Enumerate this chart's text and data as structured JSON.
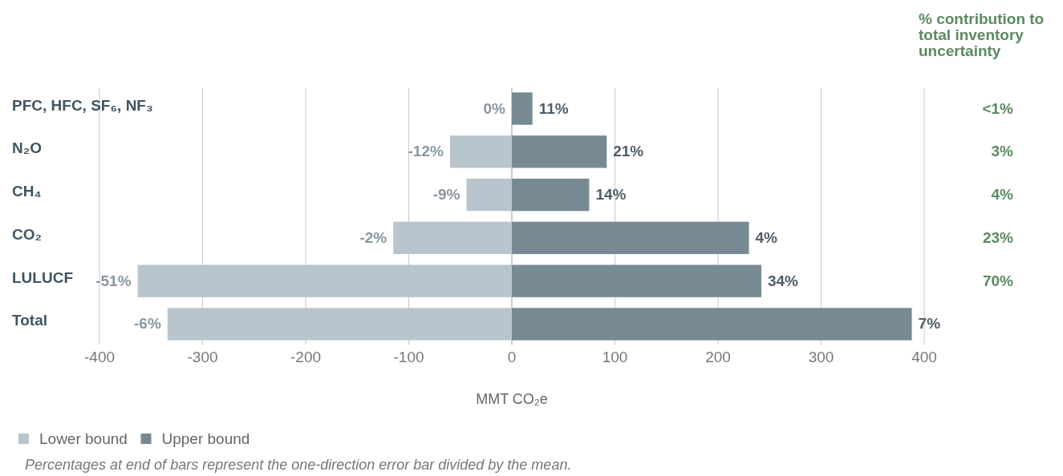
{
  "chart_data": {
    "type": "bar",
    "orientation": "horizontal",
    "stacked": true,
    "categories": [
      "PFC, HFC, SF₆, NF₃",
      "N₂O",
      "CH₄",
      "CO₂",
      "LULUCF",
      "Total"
    ],
    "series": [
      {
        "name": "Lower bound",
        "color": "#b8c5cc",
        "values": [
          0,
          -60,
          -44,
          -115,
          -363,
          -334
        ]
      },
      {
        "name": "Upper bound",
        "color": "#778a93",
        "values": [
          20,
          92,
          75,
          230,
          242,
          388
        ]
      }
    ],
    "xlim": [
      -400,
      400
    ],
    "xticks": [
      -400,
      -300,
      -200,
      -100,
      0,
      100,
      200,
      300,
      400
    ],
    "xlabel": "MMT CO₂e",
    "grid": "x",
    "legend": "bottom",
    "annotations": [
      "% contribution to total inventory uncertainty",
      {
        "text": "0%",
        "x": 0,
        "y": "PFC, HFC, SF₆, NF₃"
      },
      {
        "text": "11%",
        "x": 20,
        "y": "PFC, HFC, SF₆, NF₃"
      },
      {
        "text": "-12%",
        "x": -60,
        "y": "N₂O"
      },
      {
        "text": "21%",
        "x": 92,
        "y": "N₂O"
      },
      {
        "text": "-9%",
        "x": -44,
        "y": "CH₄"
      },
      {
        "text": "14%",
        "x": 75,
        "y": "CH₄"
      },
      {
        "text": "-2%",
        "x": -115,
        "y": "CO₂"
      },
      {
        "text": "4%",
        "x": 230,
        "y": "CO₂"
      },
      {
        "text": "-51%",
        "x": -363,
        "y": "LULUCF"
      },
      {
        "text": "34%",
        "x": 242,
        "y": "LULUCF"
      },
      {
        "text": "-6%",
        "x": -334,
        "y": "Total"
      },
      {
        "text": "7%",
        "x": 388,
        "y": "Total"
      },
      "<1%",
      "3%",
      "4%",
      "23%",
      "70%",
      "Percentages at end of bars represent the one-direction error bar divided by the mean."
    ]
  }
}
